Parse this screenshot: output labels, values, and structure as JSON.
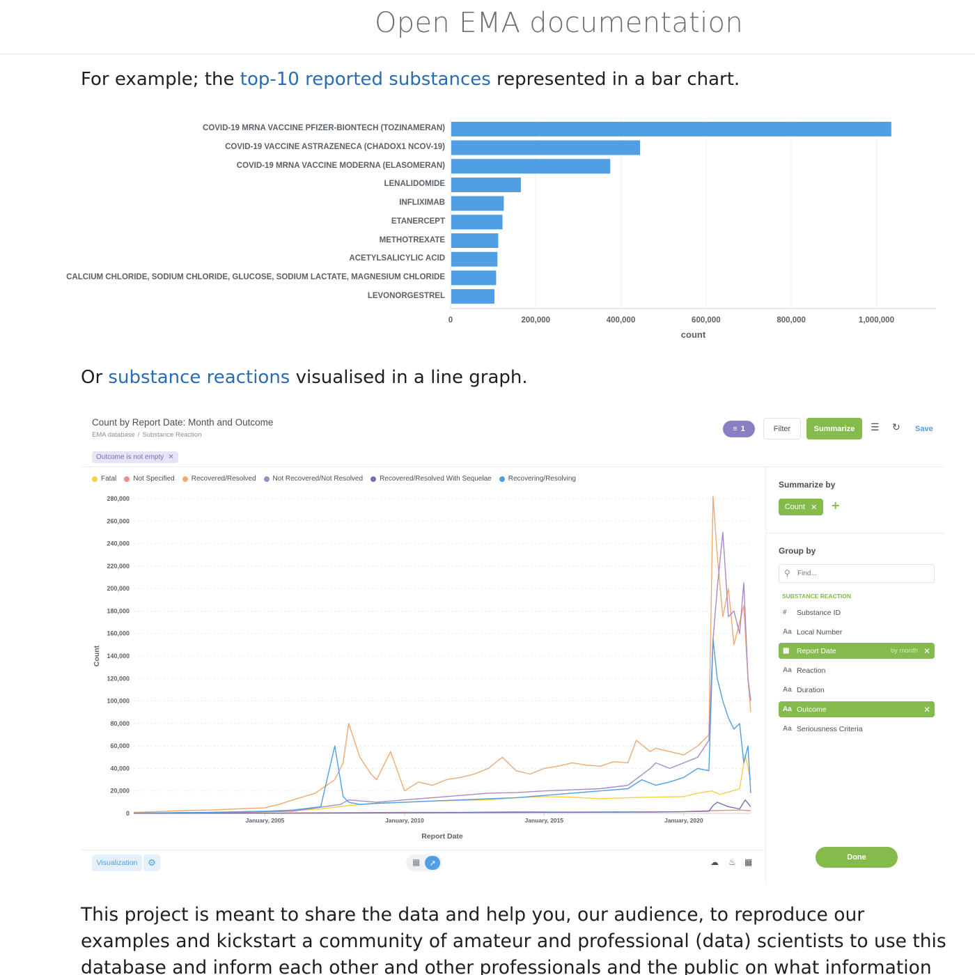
{
  "site": {
    "title": "Open EMA documentation"
  },
  "paragraphs": {
    "p1": {
      "before": "For example; the ",
      "link": "top-10 reported substances",
      "after": " represented in a bar chart."
    },
    "p2": {
      "before": "Or ",
      "link": "substance reactions",
      "after": " visualised in a line graph."
    },
    "p3": "This project is meant to share the data and help you, our audience, to reproduce our examples and kickstart a community of amateur and professional (data) scientists to use this database and inform each other and other professionals and the public on what information is available and what the"
  },
  "chart_data": [
    {
      "type": "bar",
      "orientation": "horizontal",
      "categories": [
        "COVID-19 MRNA VACCINE PFIZER-BIONTECH (TOZINAMERAN)",
        "COVID-19 VACCINE ASTRAZENECA (CHADOX1 NCOV-19)",
        "COVID-19 MRNA VACCINE MODERNA (ELASOMERAN)",
        "LENALIDOMIDE",
        "INFLIXIMAB",
        "ETANERCEPT",
        "METHOTREXATE",
        "ACETYLSALICYLIC ACID",
        "CALCIUM CHLORIDE, SODIUM CHLORIDE, GLUCOSE, SODIUM LACTATE, MAGNESIUM CHLORIDE",
        "LEVONORGESTREL"
      ],
      "values": [
        1035000,
        445000,
        375000,
        165000,
        125000,
        122000,
        112000,
        110000,
        107000,
        103000
      ],
      "xlabel": "count",
      "xlim": [
        0,
        1140000
      ],
      "xticks": [
        0,
        200000,
        400000,
        600000,
        800000,
        1000000
      ],
      "xtick_labels": [
        "0",
        "200,000",
        "400,000",
        "600,000",
        "800,000",
        "1,000,000"
      ],
      "color": "#509ee3",
      "grid": true
    },
    {
      "type": "line",
      "title": "Count by Report Date: Month and Outcome",
      "xlabel": "Report Date",
      "ylabel": "Count",
      "xlim": [
        2000.3,
        2022.4
      ],
      "ylim": [
        0,
        280000
      ],
      "yticks": [
        0,
        20000,
        40000,
        60000,
        80000,
        100000,
        120000,
        140000,
        160000,
        180000,
        200000,
        220000,
        240000,
        260000,
        280000
      ],
      "ytick_labels": [
        "0",
        "20,000",
        "40,000",
        "60,000",
        "80,000",
        "100,000",
        "120,000",
        "140,000",
        "160,000",
        "180,000",
        "200,000",
        "220,000",
        "240,000",
        "260,000",
        "280,000"
      ],
      "xticks": [
        2005,
        2010,
        2015,
        2020
      ],
      "xtick_labels": [
        "January, 2005",
        "January, 2010",
        "January, 2015",
        "January, 2020"
      ],
      "grid": true,
      "legend_position": "top-left",
      "series": [
        {
          "name": "Fatal",
          "color": "#f9cf48",
          "x": [
            2000.3,
            2002,
            2004,
            2005,
            2006,
            2007,
            2008,
            2009,
            2010,
            2011,
            2012,
            2013,
            2014,
            2015,
            2016,
            2017,
            2018,
            2019,
            2020,
            2020.5,
            2021,
            2021.3,
            2021.6,
            2022,
            2022.2,
            2022.4
          ],
          "y": [
            300,
            500,
            800,
            1200,
            2500,
            4000,
            7000,
            9000,
            10000,
            11000,
            11500,
            12000,
            14000,
            15000,
            14500,
            13000,
            14000,
            14500,
            15000,
            18000,
            20000,
            17000,
            19000,
            22000,
            52000,
            30000
          ]
        },
        {
          "name": "Not Specified",
          "color": "#ef8c8c",
          "x": [
            2000.3,
            2004,
            2008,
            2010,
            2012,
            2014,
            2016,
            2018,
            2020,
            2021,
            2022,
            2022.4
          ],
          "y": [
            100,
            200,
            600,
            900,
            1000,
            1500,
            1200,
            1400,
            1600,
            2500,
            3000,
            2500
          ]
        },
        {
          "name": "Recovered/Resolved",
          "color": "#f2a86f",
          "x": [
            2000.3,
            2001,
            2002,
            2003,
            2004,
            2005,
            2005.5,
            2006,
            2006.8,
            2007.5,
            2007.8,
            2008,
            2008.4,
            2008.8,
            2009,
            2009.5,
            2010,
            2010.5,
            2011,
            2011.5,
            2012,
            2012.5,
            2013,
            2013.5,
            2014,
            2014.5,
            2015,
            2015.5,
            2016,
            2016.5,
            2017,
            2017.5,
            2018,
            2018.3,
            2018.8,
            2019,
            2019.5,
            2020,
            2020.5,
            2020.9,
            2021.05,
            2021.2,
            2021.4,
            2021.6,
            2021.8,
            2022,
            2022.15,
            2022.3,
            2022.4
          ],
          "y": [
            1000,
            1500,
            2500,
            3000,
            4000,
            5000,
            8000,
            12000,
            18000,
            30000,
            45000,
            80000,
            50000,
            35000,
            30000,
            55000,
            20000,
            28000,
            25000,
            30000,
            32000,
            35000,
            40000,
            50000,
            38000,
            35000,
            40000,
            42000,
            45000,
            43000,
            42000,
            46000,
            45000,
            65000,
            55000,
            58000,
            55000,
            52000,
            60000,
            70000,
            282000,
            230000,
            175000,
            200000,
            150000,
            170000,
            185000,
            120000,
            90000
          ]
        },
        {
          "name": "Not Recovered/Not Resolved",
          "color": "#a989c5",
          "x": [
            2000.3,
            2004,
            2006,
            2007.7,
            2008,
            2009,
            2010,
            2011,
            2012,
            2013,
            2014,
            2015,
            2016,
            2017,
            2018,
            2018.8,
            2019,
            2019.5,
            2020,
            2020.5,
            2020.9,
            2021.05,
            2021.2,
            2021.4,
            2021.6,
            2021.8,
            2022,
            2022.15,
            2022.3,
            2022.4
          ],
          "y": [
            200,
            800,
            2000,
            8000,
            12000,
            10000,
            12000,
            14000,
            16000,
            18000,
            18500,
            20000,
            21000,
            22000,
            25000,
            40000,
            45000,
            40000,
            45000,
            50000,
            65000,
            155000,
            200000,
            250000,
            175000,
            180000,
            160000,
            205000,
            120000,
            100000
          ]
        },
        {
          "name": "Recovered/Resolved With Sequelae",
          "color": "#7172ad",
          "x": [
            2000.3,
            2005,
            2010,
            2015,
            2019,
            2020,
            2020.9,
            2021.05,
            2021.2,
            2021.6,
            2022,
            2022.2,
            2022.4
          ],
          "y": [
            50,
            200,
            600,
            1000,
            1200,
            1500,
            2000,
            7000,
            10000,
            6000,
            4000,
            12000,
            6000
          ]
        },
        {
          "name": "Recovering/Resolving",
          "color": "#509ee3",
          "x": [
            2000.3,
            2003,
            2005,
            2006,
            2007,
            2007.5,
            2007.8,
            2008,
            2008.4,
            2009,
            2010,
            2011,
            2012,
            2013,
            2014,
            2015,
            2016,
            2017,
            2018,
            2018.5,
            2019,
            2019.5,
            2020,
            2020.5,
            2020.9,
            2021.05,
            2021.2,
            2021.4,
            2021.6,
            2021.8,
            2022,
            2022.15,
            2022.3,
            2022.4
          ],
          "y": [
            300,
            1000,
            2000,
            3000,
            6000,
            60000,
            15000,
            10000,
            8000,
            9000,
            10000,
            11000,
            12000,
            13000,
            14000,
            16000,
            18000,
            20000,
            22000,
            30000,
            25000,
            28000,
            32000,
            40000,
            38000,
            155000,
            120000,
            100000,
            85000,
            75000,
            80000,
            45000,
            60000,
            18000
          ]
        }
      ]
    }
  ],
  "metabase": {
    "title": "Count by Report Date: Month and Outcome",
    "breadcrumb": [
      "EMA database",
      "/",
      "Substance Reaction"
    ],
    "filter_count": "1",
    "filter_label": "Filter",
    "summarize_label": "Summarize",
    "save_label": "Save",
    "filter_chip": "Outcome is not empty",
    "summarize_by_title": "Summarize by",
    "count_chip": "Count",
    "group_by_title": "Group by",
    "find_placeholder": "Find...",
    "group_heading": "SUBSTANCE REACTION",
    "fields": [
      {
        "icon": "#",
        "label": "Substance ID"
      },
      {
        "icon": "Aa",
        "label": "Local Number"
      },
      {
        "icon": "date-icon",
        "label": "Report Date",
        "extra": "by month"
      },
      {
        "icon": "Aa",
        "label": "Reaction"
      },
      {
        "icon": "Aa",
        "label": "Duration"
      },
      {
        "icon": "Aa",
        "label": "Outcome"
      },
      {
        "icon": "Aa",
        "label": "Seriousness Criteria"
      }
    ],
    "done_label": "Done",
    "visualization_label": "Visualization",
    "accent_green": "#84bb4c",
    "accent_blue": "#509ee3"
  }
}
